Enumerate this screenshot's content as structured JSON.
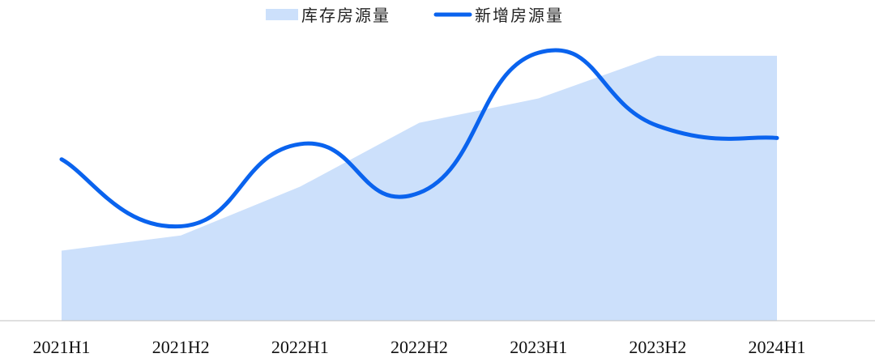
{
  "chart_data": {
    "type": "area",
    "categories": [
      "2021H1",
      "2021H2",
      "2022H1",
      "2022H2",
      "2023H1",
      "2023H2",
      "2024H1"
    ],
    "series": [
      {
        "name": "库存房源量",
        "kind": "area",
        "color": "#cce0fb",
        "values": [
          23,
          28,
          44,
          65,
          73,
          87,
          87
        ]
      },
      {
        "name": "新增房源量",
        "kind": "line",
        "color": "#0a63ee",
        "values": [
          53,
          31,
          58,
          42,
          88,
          64,
          60
        ]
      }
    ],
    "ylim": [
      0,
      100
    ],
    "legend_position": "top-center",
    "grid": false,
    "xlabel": "",
    "ylabel": ""
  }
}
